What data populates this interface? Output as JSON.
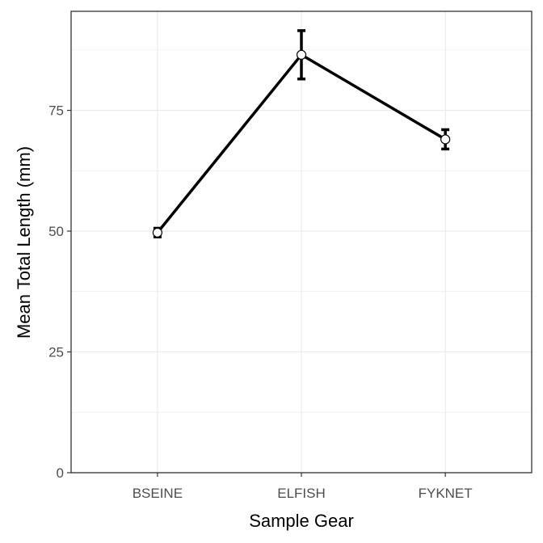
{
  "chart_data": {
    "type": "line",
    "title": "",
    "xlabel": "Sample Gear",
    "ylabel": "Mean Total Length (mm)",
    "categories": [
      "BSEINE",
      "ELFISH",
      "FYKNET"
    ],
    "series": [
      {
        "values": [
          49.7,
          86.5,
          69.0
        ],
        "error_low": [
          48.8,
          81.5,
          67.0
        ],
        "error_high": [
          50.6,
          91.5,
          71.0
        ]
      }
    ],
    "ylim": [
      0,
      95.5
    ],
    "yticks": [
      0,
      25,
      50,
      75
    ],
    "grid": true,
    "legend": "none",
    "colors": {
      "line": "#000000",
      "marker_fill": "#ffffff",
      "grid": "#ebebeb",
      "panel_border": "#333333",
      "tick_text": "#4d4d4d"
    }
  }
}
